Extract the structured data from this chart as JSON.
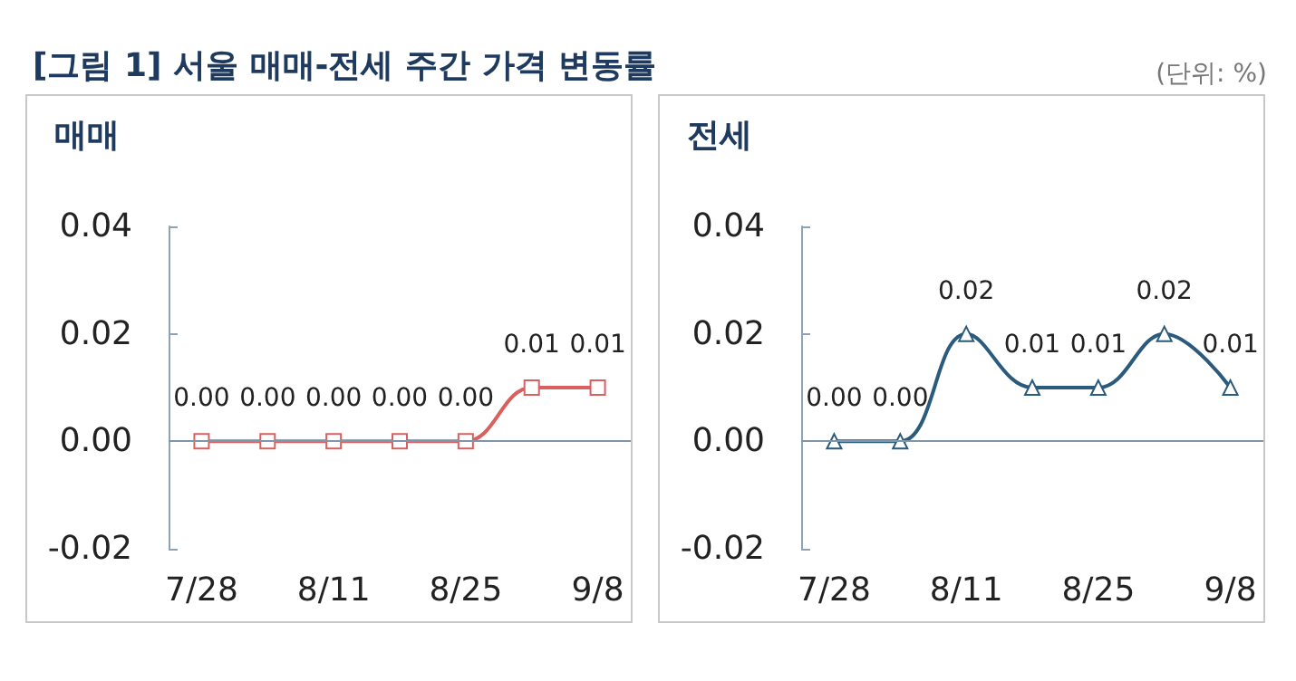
{
  "chart_data": [
    {
      "type": "line",
      "title": "매매",
      "annotations": [
        "[그림 1] 서울 매매-전세 주간 가격 변동률",
        "(단위: %)"
      ],
      "categories": [
        "7/28",
        null,
        "8/11",
        null,
        "8/25",
        null,
        "9/8"
      ],
      "series": [
        {
          "color": "#d9605f",
          "values": [
            0,
            0,
            0,
            0,
            0,
            0.01,
            0.01
          ]
        }
      ],
      "value_labels": [
        "0.00",
        "0.00",
        "0.00",
        "0.00",
        "0.00",
        "0.01",
        "0.01"
      ],
      "marker": "square",
      "ref_lines": [
        {
          "axis": "y",
          "value": 0,
          "color": "#7f95a8"
        }
      ],
      "ylim": [
        -0.02,
        0.04
      ],
      "yticks": [
        -0.02,
        {
          "value": 0,
          "label": "0.00"
        },
        0.02,
        0.04
      ]
    },
    {
      "type": "line",
      "title": "전세",
      "categories": [
        "7/28",
        null,
        "8/11",
        null,
        "8/25",
        null,
        "9/8"
      ],
      "series": [
        {
          "color": "#2a5a7c",
          "values": [
            0,
            0,
            0.02,
            0.01,
            0.01,
            0.02,
            0.01
          ]
        }
      ],
      "value_labels": [
        "0.00",
        "0.00",
        "0.02",
        "0.01",
        "0.01",
        "0.02",
        "0.01"
      ],
      "marker": "triangle",
      "ref_lines": [
        {
          "axis": "y",
          "value": 0,
          "color": "#7f95a8"
        }
      ],
      "ylim": [
        -0.02,
        0.04
      ],
      "yticks": [
        -0.02,
        {
          "value": 0,
          "label": "0.00"
        },
        0.02,
        0.04
      ]
    }
  ]
}
